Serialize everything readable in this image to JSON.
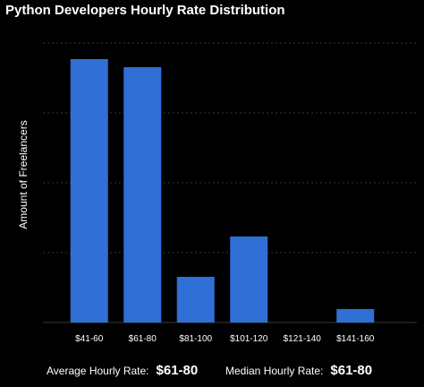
{
  "chart_data": {
    "type": "bar",
    "title": "Python Developers Hourly Rate Distribution",
    "ylabel": "Amount of Freelancers",
    "xlabel": "",
    "categories": [
      "$41-60",
      "$61-80",
      "$81-100",
      "$101-120",
      "$121-140",
      "$141-160"
    ],
    "values": [
      98,
      95,
      17,
      32,
      0,
      5
    ],
    "ylim": [
      0,
      104
    ],
    "grid": true,
    "bar_color": "#2f6fd6",
    "grid_color": "#3a3a3a"
  },
  "footer": {
    "average_label": "Average Hourly Rate:",
    "average_value": "$61-80",
    "median_label": "Median Hourly Rate:",
    "median_value": "$61-80"
  }
}
